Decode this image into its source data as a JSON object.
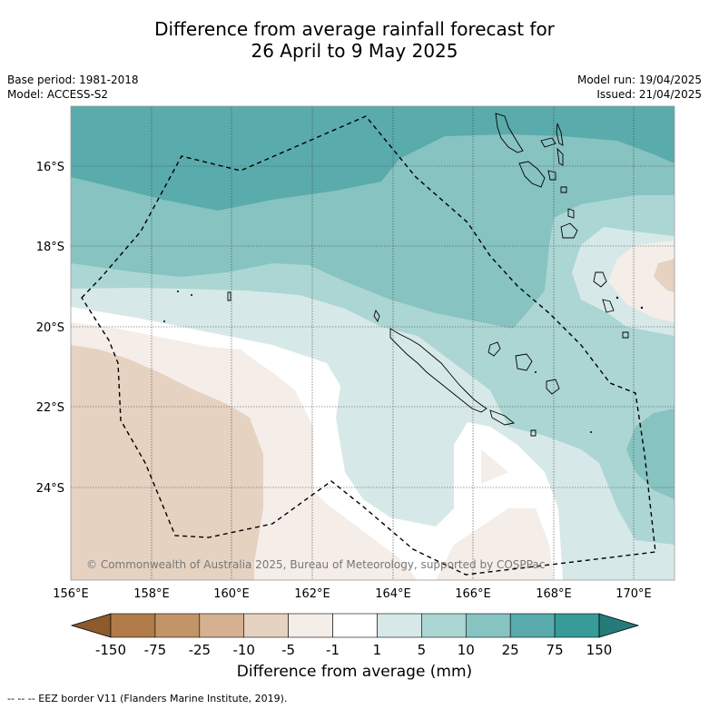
{
  "title": {
    "line1": "Difference from average rainfall forecast for",
    "line2": "26 April to 9 May 2025"
  },
  "meta": {
    "base_period": "Base period: 1981-2018",
    "model": "Model: ACCESS-S2",
    "model_run": "Model run: 19/04/2025",
    "issued": "Issued: 21/04/2025"
  },
  "map": {
    "lat_labels": [
      "16°S",
      "18°S",
      "20°S",
      "22°S",
      "24°S"
    ],
    "lon_labels": [
      "156°E",
      "158°E",
      "160°E",
      "162°E",
      "164°E",
      "166°E",
      "168°E",
      "170°E"
    ],
    "copyright": "© Commonwealth of Australia 2025, Bureau of Meteorology, supported by COSPPac",
    "eez_line_style": "dashed"
  },
  "colorbar": {
    "ticks": [
      "-150",
      "-75",
      "-25",
      "-10",
      "-5",
      "-1",
      "1",
      "5",
      "10",
      "25",
      "75",
      "150"
    ],
    "colors": [
      "#8c5a2b",
      "#b07b48",
      "#c39468",
      "#d5b192",
      "#e6d2c1",
      "#f5ede8",
      "#ffffff",
      "#d6e9e8",
      "#acd6d4",
      "#86c3c1",
      "#5aabab",
      "#379b98",
      "#257b79"
    ],
    "label": "Difference from average (mm)"
  },
  "footnote": "--  --  -- EEZ border V11 (Flanders Marine Institute, 2019)."
}
